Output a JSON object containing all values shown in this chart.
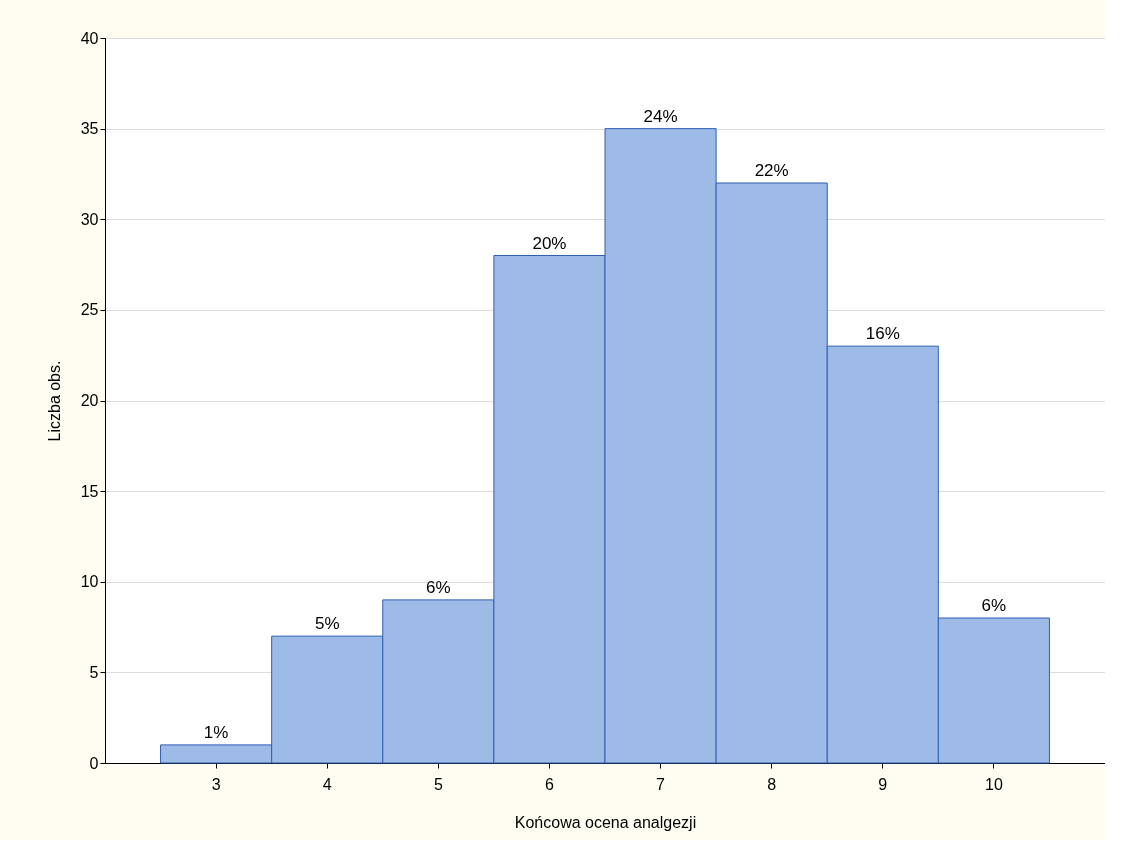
{
  "chart_data": {
    "type": "bar",
    "xlabel": "Końcowa ocena analgezji",
    "ylabel": "Liczba obs.",
    "categories": [
      "3",
      "4",
      "5",
      "6",
      "7",
      "8",
      "9",
      "10"
    ],
    "series": [
      {
        "color": "#9dbbe6",
        "values": [
          1,
          7,
          9,
          28,
          35,
          32,
          23,
          8
        ]
      }
    ],
    "annotations": [
      {
        "text": "1%",
        "x": "3",
        "y": 1
      },
      {
        "text": "5%",
        "x": "4",
        "y": 7
      },
      {
        "text": "6%",
        "x": "5",
        "y": 9
      },
      {
        "text": "20%",
        "x": "6",
        "y": 28
      },
      {
        "text": "24%",
        "x": "7",
        "y": 35
      },
      {
        "text": "22%",
        "x": "8",
        "y": 32
      },
      {
        "text": "16%",
        "x": "9",
        "y": 23
      },
      {
        "text": "6%",
        "x": "10",
        "y": 8
      }
    ],
    "ylim": [
      0,
      40
    ],
    "yticks": [
      0,
      5,
      10,
      15,
      20,
      25,
      30,
      35,
      40
    ],
    "grid": "y"
  }
}
